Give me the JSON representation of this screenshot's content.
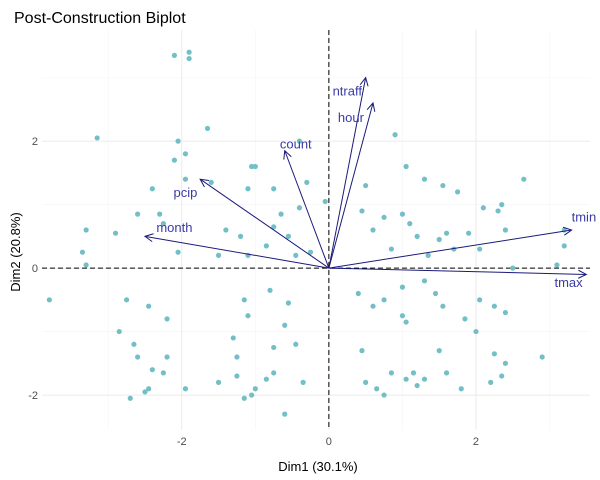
{
  "chart_data": {
    "type": "scatter",
    "title": "Post-Construction Biplot",
    "xlabel": "Dim1 (30.1%)",
    "ylabel": "Dim2 (20.8%)",
    "xlim": [
      -3.9,
      3.55
    ],
    "ylim": [
      -2.55,
      3.75
    ],
    "x_ticks": [
      -2,
      0,
      2
    ],
    "x_tick_labels": [
      "-2",
      "0",
      "2"
    ],
    "y_ticks": [
      -2,
      0,
      2
    ],
    "y_tick_labels": [
      "-2",
      "0",
      "2"
    ],
    "grid": true,
    "point_color": "#72bfc5",
    "arrow_color": "#1a1a7a",
    "label_color": "#3a3aa8",
    "points": [
      [
        -2.1,
        3.35
      ],
      [
        -1.9,
        3.3
      ],
      [
        -1.9,
        3.4
      ],
      [
        -3.15,
        2.05
      ],
      [
        -2.05,
        2.0
      ],
      [
        -1.65,
        2.2
      ],
      [
        -0.4,
        2.0
      ],
      [
        0.9,
        2.1
      ],
      [
        -1.95,
        1.8
      ],
      [
        -2.1,
        1.7
      ],
      [
        -1.0,
        1.6
      ],
      [
        -1.05,
        1.6
      ],
      [
        -2.4,
        1.25
      ],
      [
        -1.95,
        1.4
      ],
      [
        -1.6,
        1.35
      ],
      [
        -1.1,
        1.25
      ],
      [
        -0.75,
        1.25
      ],
      [
        -0.3,
        1.35
      ],
      [
        -0.4,
        0.95
      ],
      [
        -0.05,
        1.05
      ],
      [
        0.5,
        1.3
      ],
      [
        1.05,
        1.6
      ],
      [
        1.3,
        1.4
      ],
      [
        1.55,
        1.3
      ],
      [
        1.75,
        1.2
      ],
      [
        2.1,
        0.95
      ],
      [
        2.35,
        1.0
      ],
      [
        2.65,
        1.4
      ],
      [
        -3.3,
        0.6
      ],
      [
        -3.35,
        0.25
      ],
      [
        -3.3,
        0.05
      ],
      [
        -2.9,
        0.55
      ],
      [
        -2.6,
        0.85
      ],
      [
        -2.3,
        0.85
      ],
      [
        -2.25,
        0.7
      ],
      [
        -2.05,
        0.25
      ],
      [
        -1.5,
        0.2
      ],
      [
        -1.1,
        0.2
      ],
      [
        -1.2,
        0.5
      ],
      [
        -1.4,
        0.6
      ],
      [
        -0.85,
        0.35
      ],
      [
        -0.55,
        0.5
      ],
      [
        -0.75,
        0.65
      ],
      [
        -0.65,
        0.85
      ],
      [
        -0.45,
        0.2
      ],
      [
        -0.25,
        0.25
      ],
      [
        0.45,
        0.9
      ],
      [
        0.6,
        0.6
      ],
      [
        0.75,
        0.8
      ],
      [
        0.85,
        0.3
      ],
      [
        1.0,
        0.85
      ],
      [
        1.1,
        0.7
      ],
      [
        1.2,
        0.5
      ],
      [
        1.35,
        0.2
      ],
      [
        1.5,
        0.45
      ],
      [
        1.6,
        0.55
      ],
      [
        1.7,
        0.3
      ],
      [
        1.9,
        0.55
      ],
      [
        2.05,
        0.3
      ],
      [
        2.3,
        0.9
      ],
      [
        2.4,
        0.6
      ],
      [
        3.2,
        0.6
      ],
      [
        3.2,
        0.35
      ],
      [
        3.1,
        0.05
      ],
      [
        2.5,
        0.0
      ],
      [
        -3.8,
        -0.5
      ],
      [
        -2.75,
        -0.5
      ],
      [
        -2.45,
        -0.6
      ],
      [
        -2.2,
        -0.8
      ],
      [
        -2.85,
        -1.0
      ],
      [
        -2.65,
        -1.2
      ],
      [
        -2.6,
        -1.4
      ],
      [
        -2.4,
        -1.6
      ],
      [
        -2.2,
        -1.4
      ],
      [
        -2.25,
        -1.65
      ],
      [
        -2.45,
        -1.9
      ],
      [
        -2.5,
        -1.95
      ],
      [
        -2.7,
        -2.05
      ],
      [
        -1.95,
        -1.9
      ],
      [
        -1.5,
        -1.8
      ],
      [
        -1.25,
        -1.7
      ],
      [
        -1.25,
        -1.4
      ],
      [
        -1.3,
        -1.1
      ],
      [
        -1.1,
        -0.75
      ],
      [
        -1.15,
        -0.5
      ],
      [
        -0.8,
        -0.35
      ],
      [
        -0.55,
        -0.55
      ],
      [
        -0.6,
        -0.9
      ],
      [
        -0.75,
        -1.25
      ],
      [
        -0.75,
        -1.65
      ],
      [
        -0.85,
        -1.75
      ],
      [
        -1.0,
        -1.9
      ],
      [
        -1.05,
        -2.0
      ],
      [
        -0.45,
        -1.2
      ],
      [
        -0.35,
        -1.8
      ],
      [
        -0.6,
        -2.3
      ],
      [
        -1.15,
        -2.05
      ],
      [
        0.4,
        -0.4
      ],
      [
        0.6,
        -0.6
      ],
      [
        0.75,
        -0.5
      ],
      [
        1.0,
        -0.3
      ],
      [
        1.0,
        -0.75
      ],
      [
        1.05,
        -0.85
      ],
      [
        1.3,
        -0.2
      ],
      [
        1.45,
        -0.4
      ],
      [
        1.55,
        -0.6
      ],
      [
        1.85,
        -0.8
      ],
      [
        2.05,
        -0.5
      ],
      [
        2.25,
        -0.6
      ],
      [
        2.4,
        -0.7
      ],
      [
        2.0,
        -1.0
      ],
      [
        2.25,
        -1.35
      ],
      [
        2.4,
        -1.5
      ],
      [
        2.35,
        -1.7
      ],
      [
        2.2,
        -1.8
      ],
      [
        2.9,
        -1.4
      ],
      [
        0.45,
        -1.3
      ],
      [
        0.5,
        -1.8
      ],
      [
        0.65,
        -1.9
      ],
      [
        0.75,
        -2.0
      ],
      [
        0.85,
        -1.65
      ],
      [
        1.05,
        -1.75
      ],
      [
        1.15,
        -1.65
      ],
      [
        1.3,
        -1.75
      ],
      [
        1.2,
        -1.85
      ],
      [
        1.5,
        -1.3
      ],
      [
        1.6,
        -1.65
      ],
      [
        1.8,
        -1.9
      ]
    ],
    "vectors": [
      {
        "name": "tmin",
        "x": 3.3,
        "y": 0.6,
        "label_x": 3.3,
        "label_y": 0.73,
        "anchor": "start"
      },
      {
        "name": "tmax",
        "x": 3.5,
        "y": -0.1,
        "label_x": 3.45,
        "label_y": -0.3,
        "anchor": "end"
      },
      {
        "name": "ntraff",
        "x": 0.5,
        "y": 3.0,
        "label_x": 0.25,
        "label_y": 2.72,
        "anchor": "middle"
      },
      {
        "name": "hour",
        "x": 0.6,
        "y": 2.6,
        "label_x": 0.3,
        "label_y": 2.3,
        "anchor": "middle"
      },
      {
        "name": "count",
        "x": -0.6,
        "y": 1.85,
        "label_x": -0.45,
        "label_y": 1.88,
        "anchor": "middle"
      },
      {
        "name": "pcip",
        "x": -1.75,
        "y": 1.4,
        "label_x": -1.95,
        "label_y": 1.12,
        "anchor": "middle"
      },
      {
        "name": "month",
        "x": -2.5,
        "y": 0.5,
        "label_x": -2.1,
        "label_y": 0.57,
        "anchor": "middle"
      }
    ]
  }
}
